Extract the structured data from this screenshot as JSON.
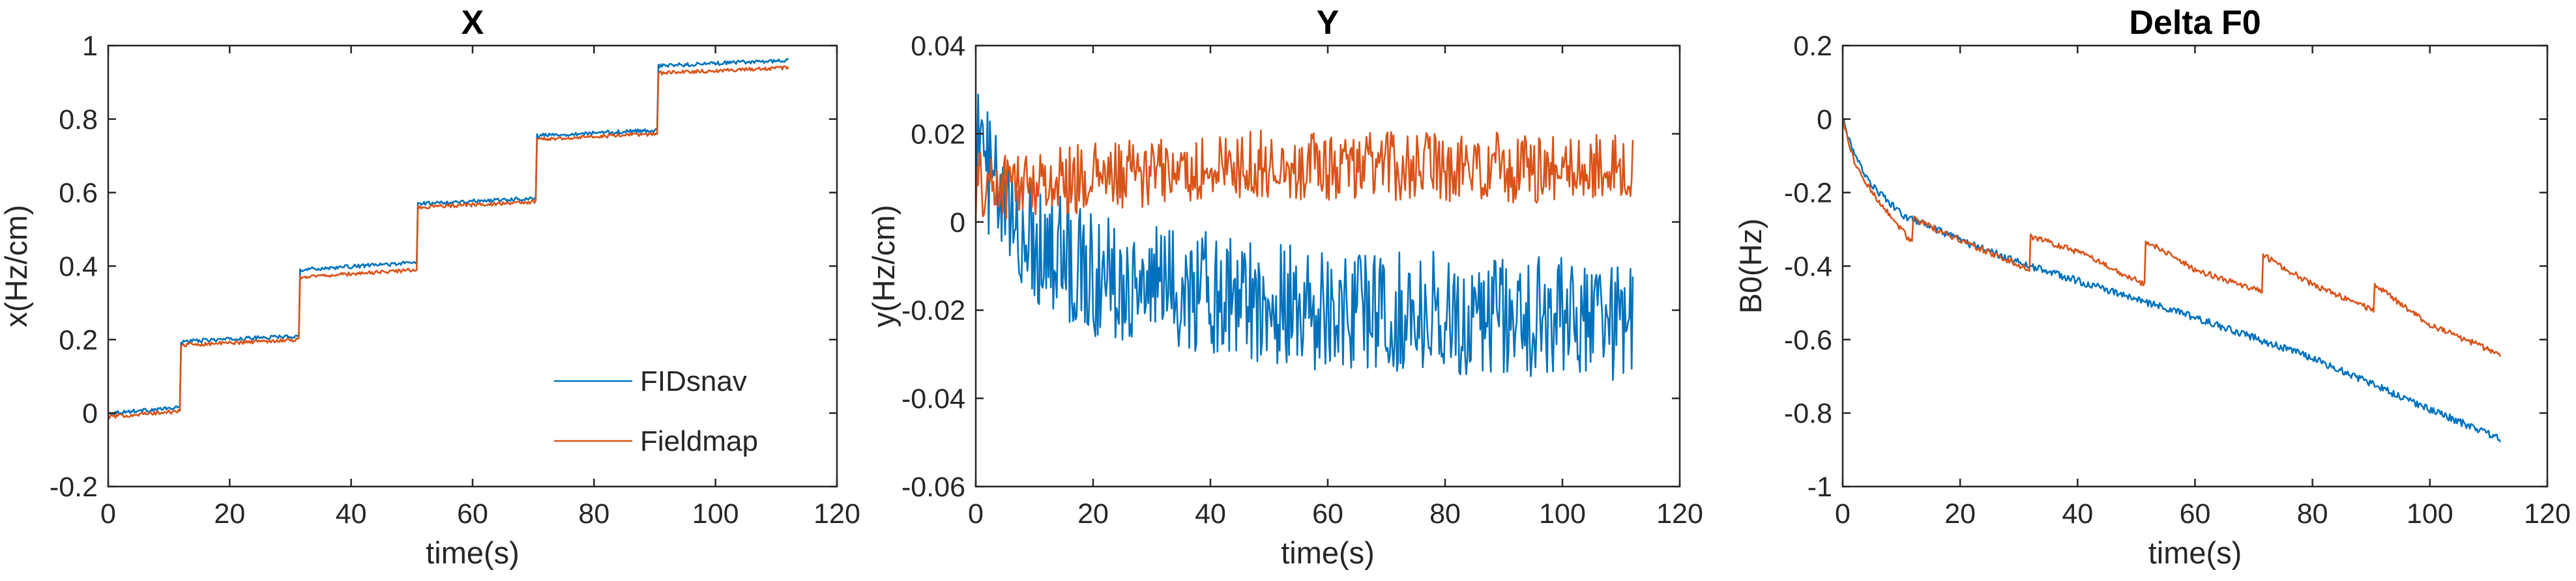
{
  "chart_data": [
    {
      "type": "line",
      "title": "X",
      "xlabel": "time(s)",
      "ylabel": "x(Hz/cm)",
      "xlim": [
        0,
        120
      ],
      "ylim": [
        -0.2,
        1
      ],
      "xticks": [
        "0",
        "20",
        "40",
        "60",
        "80",
        "100",
        "120"
      ],
      "yticks": [
        "-0.2",
        "0",
        "0.2",
        "0.4",
        "0.6",
        "0.8",
        "1"
      ],
      "legend": "bottom-right",
      "series": [
        {
          "name": "FIDsnav",
          "color": "#0072BD",
          "steps": [
            [
              0,
              0.0,
              0.015
            ],
            [
              12,
              0.195,
              0.21
            ],
            [
              31.5,
              0.39,
              0.41
            ],
            [
              51,
              0.57,
              0.585
            ],
            [
              70.5,
              0.755,
              0.77
            ],
            [
              90.5,
              0.945,
              0.96
            ]
          ],
          "x_end": 112,
          "noise": 0.005
        },
        {
          "name": "Fieldmap",
          "color": "#D95319",
          "steps": [
            [
              0,
              -0.01,
              0.005
            ],
            [
              12,
              0.185,
              0.2
            ],
            [
              31.5,
              0.37,
              0.39
            ],
            [
              51,
              0.56,
              0.575
            ],
            [
              70.5,
              0.745,
              0.76
            ],
            [
              90.5,
              0.925,
              0.94
            ]
          ],
          "x_end": 112,
          "noise": 0.005
        }
      ]
    },
    {
      "type": "line",
      "title": "Y",
      "xlabel": "time(s)",
      "ylabel": "y(Hz/cm)",
      "xlim": [
        0,
        120
      ],
      "ylim": [
        -0.06,
        0.04
      ],
      "xticks": [
        "0",
        "20",
        "40",
        "60",
        "80",
        "100",
        "120"
      ],
      "yticks": [
        "-0.06",
        "-0.04",
        "-0.02",
        "0",
        "0.02",
        "0.04"
      ],
      "series": [
        {
          "name": "FIDsnav",
          "color": "#0072BD",
          "trend": [
            [
              0,
              0.02
            ],
            [
              5,
              0.0
            ],
            [
              20,
              -0.012
            ],
            [
              60,
              -0.02
            ],
            [
              112,
              -0.022
            ]
          ],
          "x_end": 112,
          "noise": 0.014
        },
        {
          "name": "Fieldmap",
          "color": "#D95319",
          "trend": [
            [
              0,
              0.008
            ],
            [
              20,
              0.01
            ],
            [
              50,
              0.013
            ],
            [
              112,
              0.012
            ]
          ],
          "x_end": 112,
          "noise": 0.008
        }
      ]
    },
    {
      "type": "line",
      "title": "Delta F0",
      "xlabel": "time(s)",
      "ylabel": "B0(Hz)",
      "xlim": [
        0,
        120
      ],
      "ylim": [
        -1,
        0.2
      ],
      "xticks": [
        "0",
        "20",
        "40",
        "60",
        "80",
        "100",
        "120"
      ],
      "yticks": [
        "-1",
        "-0.8",
        "-0.6",
        "-0.4",
        "-0.2",
        "0",
        "0.2"
      ],
      "series": [
        {
          "name": "FIDsnav",
          "color": "#0072BD",
          "trend": [
            [
              0,
              0.0
            ],
            [
              2,
              -0.1
            ],
            [
              5,
              -0.18
            ],
            [
              10,
              -0.26
            ],
            [
              20,
              -0.33
            ],
            [
              30,
              -0.39
            ],
            [
              40,
              -0.44
            ],
            [
              60,
              -0.54
            ],
            [
              80,
              -0.65
            ],
            [
              100,
              -0.79
            ],
            [
              112,
              -0.87
            ]
          ],
          "x_end": 112,
          "noise": 0.01
        },
        {
          "name": "Fieldmap",
          "color": "#D95319",
          "trend": [
            [
              0,
              0.0
            ],
            [
              2,
              -0.12
            ],
            [
              5,
              -0.2
            ],
            [
              10,
              -0.3
            ],
            [
              11.9,
              -0.34
            ],
            [
              12,
              -0.27
            ],
            [
              20,
              -0.33
            ],
            [
              31.9,
              -0.41
            ],
            [
              32,
              -0.32
            ],
            [
              40,
              -0.36
            ],
            [
              51.4,
              -0.45
            ],
            [
              51.5,
              -0.33
            ],
            [
              60,
              -0.41
            ],
            [
              71.4,
              -0.47
            ],
            [
              71.5,
              -0.37
            ],
            [
              80,
              -0.45
            ],
            [
              90.4,
              -0.52
            ],
            [
              90.5,
              -0.45
            ],
            [
              100,
              -0.56
            ],
            [
              112,
              -0.64
            ]
          ],
          "x_end": 112,
          "noise": 0.008
        }
      ]
    }
  ]
}
